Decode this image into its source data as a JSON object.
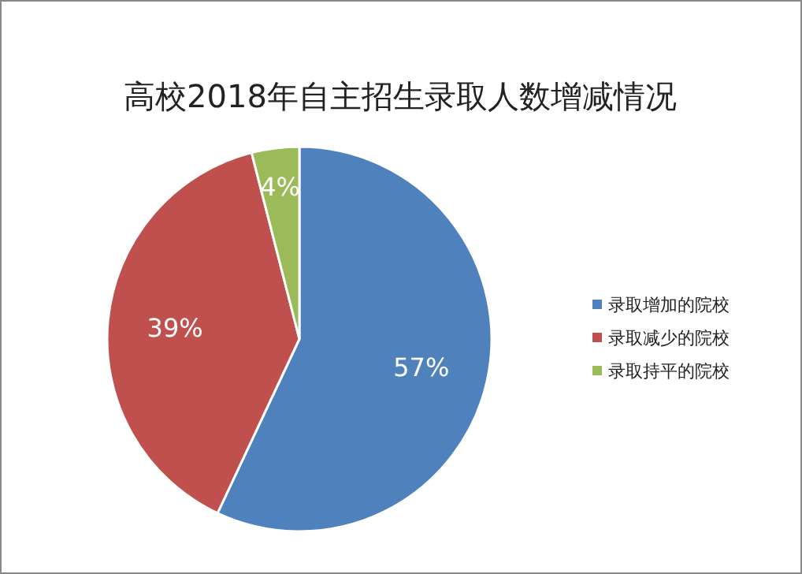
{
  "chart_data": {
    "type": "pie",
    "title": "高校2018年自主招生录取人数增减情况",
    "categories": [
      "录取增加的院校",
      "录取减少的院校",
      "录取持平的院校"
    ],
    "values": [
      57,
      39,
      4
    ],
    "colors": [
      "#4f81bd",
      "#c0504d",
      "#9bbb59"
    ],
    "value_labels": [
      "57%",
      "39%",
      "4%"
    ],
    "legend": "right"
  }
}
